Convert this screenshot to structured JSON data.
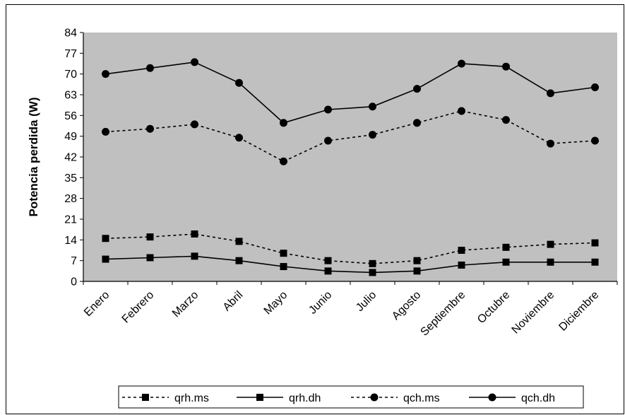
{
  "chart_data": {
    "type": "line",
    "title": "",
    "xlabel": "",
    "ylabel": "Potencia perdida (W)",
    "categories": [
      "Enero",
      "Febrero",
      "Marzo",
      "Abril",
      "Mayo",
      "Junio",
      "Julio",
      "Agosto",
      "Septiembre",
      "Octubre",
      "Noviembre",
      "Diciembre"
    ],
    "ylim": [
      0,
      84
    ],
    "yticks": [
      0,
      7,
      14,
      21,
      28,
      35,
      42,
      49,
      56,
      63,
      70,
      77,
      84
    ],
    "grid": false,
    "plot_background": "#C0C0C0",
    "legend_position": "bottom",
    "series": [
      {
        "name": "qrh.ms",
        "marker": "square",
        "line_style": "dashed",
        "values": [
          14.5,
          15.0,
          16.0,
          13.5,
          9.5,
          7.0,
          6.0,
          7.0,
          10.5,
          11.5,
          12.5,
          13.0
        ]
      },
      {
        "name": "qrh.dh",
        "marker": "square",
        "line_style": "solid",
        "values": [
          7.5,
          8.0,
          8.5,
          7.0,
          5.0,
          3.5,
          3.0,
          3.5,
          5.5,
          6.5,
          6.5,
          6.5
        ]
      },
      {
        "name": "qch.ms",
        "marker": "circle",
        "line_style": "dashed",
        "values": [
          50.5,
          51.5,
          53.0,
          48.5,
          40.5,
          47.5,
          49.5,
          53.5,
          57.5,
          54.5,
          46.5,
          47.5
        ]
      },
      {
        "name": "qch.dh",
        "marker": "circle",
        "line_style": "solid",
        "values": [
          70.0,
          72.0,
          74.0,
          67.0,
          53.5,
          58.0,
          59.0,
          65.0,
          73.5,
          72.5,
          63.5,
          65.5
        ]
      }
    ]
  }
}
